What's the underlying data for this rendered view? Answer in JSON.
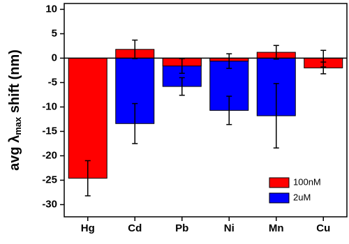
{
  "chart_data": {
    "type": "bar",
    "y_label": {
      "text": "avg λ",
      "sub": "max",
      "suffix": " shift (nm)"
    },
    "categories": [
      "Hg",
      "Cd",
      "Pb",
      "Ni",
      "Mn",
      "Cu"
    ],
    "series": [
      {
        "name": "2uM",
        "color": "#0000ff",
        "values": [
          null,
          -13.4,
          -5.8,
          -10.7,
          -11.8,
          -0.1
        ],
        "errors": [
          null,
          4.1,
          1.8,
          2.9,
          6.6,
          1.7
        ]
      },
      {
        "name": "100nM",
        "color": "#ff0000",
        "values": [
          -24.6,
          1.8,
          -1.6,
          -0.6,
          1.2,
          -2.0
        ],
        "errors": [
          3.6,
          1.9,
          1.5,
          1.5,
          1.4,
          1.2
        ]
      }
    ],
    "legend_order": [
      1,
      0
    ],
    "legend": "lower right",
    "ylim": [
      -32.5,
      11.2
    ],
    "yticks": [
      -30,
      -25,
      -20,
      -15,
      -10,
      -5,
      0,
      5,
      10
    ]
  }
}
